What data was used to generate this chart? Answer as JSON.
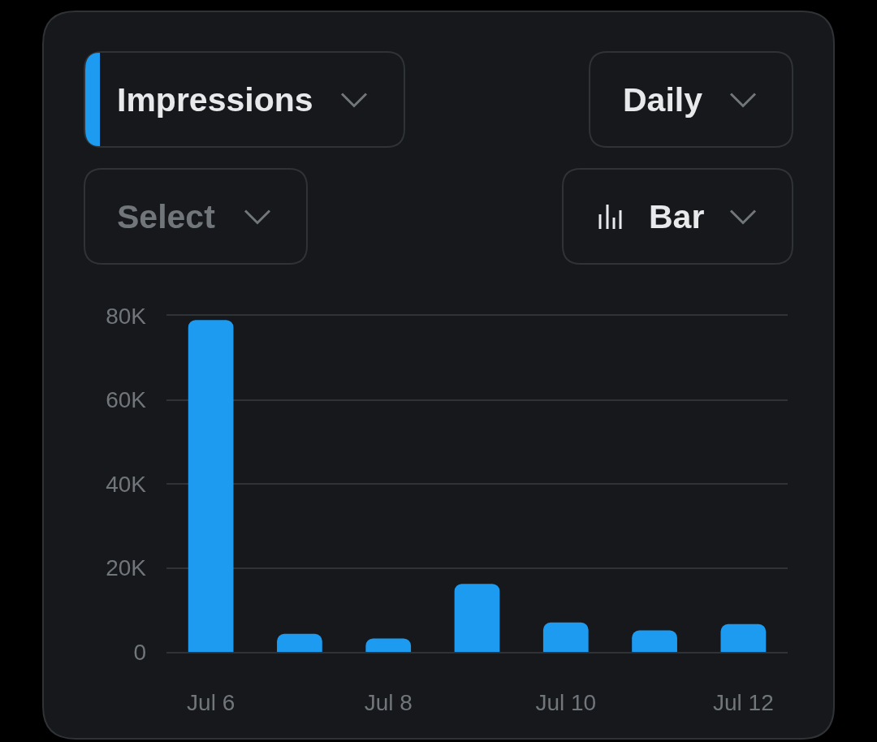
{
  "chart_data": {
    "type": "bar",
    "categories": [
      "Jul 6",
      null,
      "Jul 8",
      null,
      "Jul 10",
      null,
      "Jul 12"
    ],
    "series": [
      {
        "name": "Impressions",
        "color": "#1d9bf0",
        "values": [
          79000,
          4300,
          3200,
          16200,
          7000,
          5100,
          6600
        ]
      }
    ],
    "annotations": [
      "Daily",
      "Select",
      "Bar"
    ],
    "ylim": [
      0,
      80000
    ],
    "yticks": [
      0,
      {
        "value": 20000,
        "label": "20K"
      },
      {
        "value": 40000,
        "label": "40K"
      },
      {
        "value": 60000,
        "label": "60K"
      },
      {
        "value": 80000,
        "label": "80K"
      }
    ],
    "grid": "y",
    "legend": "top left"
  }
}
